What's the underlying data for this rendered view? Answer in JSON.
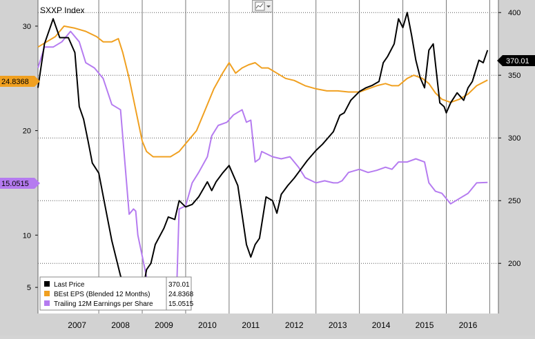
{
  "chart_data": {
    "type": "line",
    "title": "SXXP Index",
    "toolbar_icon": "chart-type-icon",
    "x_categories": [
      "2007",
      "2008",
      "2009",
      "2010",
      "2011",
      "2012",
      "2013",
      "2014",
      "2015",
      "2016"
    ],
    "xlim": [
      2006.6,
      2017.2
    ],
    "left_axis": {
      "ticks": [
        5,
        10,
        20,
        30
      ],
      "ylim": [
        2.5,
        32.5
      ]
    },
    "right_axis": {
      "ticks": [
        200,
        250,
        300,
        350,
        400
      ],
      "ylim": [
        160,
        410
      ]
    },
    "badges": {
      "last_price": "370.01",
      "best_eps": "24.8368",
      "trailing": "15.0515"
    },
    "legend": {
      "placement": "bottom-left",
      "items": [
        {
          "name": "Last Price",
          "value": "370.01",
          "color": "#000000"
        },
        {
          "name": "BEst EPS (Blended 12 Months)",
          "value": "24.8368",
          "color": "#f0a020"
        },
        {
          "name": "Trailing 12M Earnings per Share",
          "value": "15.0515",
          "color": "#b57bf0"
        }
      ]
    },
    "series": [
      {
        "name": "Last Price",
        "axis": "right",
        "color": "#000000",
        "x": [
          2006.6,
          2006.75,
          2006.95,
          2007.1,
          2007.3,
          2007.45,
          2007.55,
          2007.65,
          2007.75,
          2007.85,
          2008.0,
          2008.15,
          2008.3,
          2008.5,
          2008.65,
          2008.8,
          2008.95,
          2009.1,
          2009.2,
          2009.3,
          2009.5,
          2009.6,
          2009.75,
          2009.85,
          2010.0,
          2010.15,
          2010.3,
          2010.5,
          2010.6,
          2010.7,
          2010.85,
          2011.0,
          2011.1,
          2011.2,
          2011.4,
          2011.5,
          2011.6,
          2011.7,
          2011.85,
          2012.0,
          2012.1,
          2012.2,
          2012.35,
          2012.5,
          2012.65,
          2012.8,
          2013.0,
          2013.15,
          2013.4,
          2013.55,
          2013.65,
          2013.8,
          2014.0,
          2014.15,
          2014.3,
          2014.45,
          2014.55,
          2014.65,
          2014.8,
          2014.9,
          2015.0,
          2015.1,
          2015.2,
          2015.3,
          2015.4,
          2015.5,
          2015.6,
          2015.7,
          2015.85,
          2015.95,
          2016.0,
          2016.1,
          2016.25,
          2016.4,
          2016.5,
          2016.6,
          2016.75,
          2016.85,
          2016.95
        ],
        "y": [
          340,
          375,
          395,
          380,
          380,
          368,
          325,
          315,
          298,
          280,
          272,
          245,
          218,
          190,
          180,
          170,
          166,
          195,
          200,
          215,
          228,
          237,
          235,
          250,
          245,
          247,
          253,
          265,
          258,
          265,
          272,
          278,
          270,
          262,
          215,
          205,
          215,
          220,
          253,
          250,
          240,
          255,
          262,
          268,
          275,
          282,
          290,
          295,
          305,
          318,
          320,
          330,
          337,
          340,
          342,
          345,
          360,
          365,
          375,
          395,
          388,
          400,
          382,
          362,
          348,
          340,
          370,
          375,
          328,
          325,
          320,
          328,
          336,
          330,
          340,
          345,
          362,
          360,
          370
        ]
      },
      {
        "name": "BEst EPS (Blended 12 Months)",
        "axis": "left",
        "color": "#f0a020",
        "x": [
          2006.6,
          2006.8,
          2007.0,
          2007.2,
          2007.45,
          2007.7,
          2007.95,
          2008.1,
          2008.3,
          2008.45,
          2008.55,
          2008.7,
          2008.85,
          2009.0,
          2009.1,
          2009.25,
          2009.45,
          2009.65,
          2009.85,
          2010.05,
          2010.25,
          2010.45,
          2010.65,
          2010.85,
          2011.0,
          2011.15,
          2011.3,
          2011.45,
          2011.6,
          2011.75,
          2011.9,
          2012.1,
          2012.3,
          2012.5,
          2012.75,
          2013.0,
          2013.25,
          2013.5,
          2013.75,
          2014.0,
          2014.2,
          2014.4,
          2014.6,
          2014.75,
          2014.9,
          2015.1,
          2015.25,
          2015.45,
          2015.6,
          2015.75,
          2015.9,
          2016.1,
          2016.3,
          2016.5,
          2016.7,
          2016.95
        ],
        "y": [
          28.0,
          28.5,
          29.0,
          30.0,
          29.8,
          29.5,
          29.0,
          28.5,
          28.5,
          28.8,
          27.5,
          25.0,
          22.0,
          19.0,
          18.0,
          17.5,
          17.5,
          17.5,
          18.0,
          19.0,
          20.0,
          22.0,
          24.0,
          25.5,
          26.5,
          25.5,
          26.0,
          26.3,
          26.5,
          26.0,
          26.0,
          25.5,
          25.0,
          24.8,
          24.3,
          24.0,
          23.8,
          23.8,
          23.7,
          23.7,
          24.0,
          24.3,
          24.5,
          24.3,
          24.3,
          25.0,
          25.3,
          25.0,
          24.5,
          23.6,
          23.0,
          22.7,
          23.0,
          23.5,
          24.3,
          24.84
        ]
      },
      {
        "name": "Trailing 12M Earnings per Share",
        "axis": "left",
        "color": "#b57bf0",
        "x": [
          2006.6,
          2006.75,
          2006.95,
          2007.15,
          2007.35,
          2007.55,
          2007.7,
          2007.9,
          2008.1,
          2008.3,
          2008.5,
          2008.7,
          2008.8,
          2008.85,
          2008.9,
          2009.0,
          2009.1,
          2009.2,
          2009.25,
          2009.4,
          2009.6,
          2009.7,
          2009.8,
          2009.85,
          2010.0,
          2010.15,
          2010.3,
          2010.5,
          2010.6,
          2010.75,
          2010.95,
          2011.1,
          2011.3,
          2011.4,
          2011.5,
          2011.6,
          2011.7,
          2011.75,
          2012.0,
          2012.2,
          2012.4,
          2012.5,
          2012.6,
          2012.75,
          2013.0,
          2013.2,
          2013.4,
          2013.5,
          2013.6,
          2013.75,
          2014.0,
          2014.2,
          2014.4,
          2014.6,
          2014.75,
          2014.9,
          2015.1,
          2015.3,
          2015.5,
          2015.6,
          2015.75,
          2015.9,
          2016.1,
          2016.3,
          2016.5,
          2016.7,
          2016.95
        ],
        "y": [
          26.0,
          28.0,
          28.0,
          28.5,
          29.5,
          28.5,
          26.5,
          26.0,
          25.0,
          22.5,
          22.0,
          12.0,
          12.5,
          12.3,
          10.0,
          8.0,
          6.0,
          5.5,
          5.4,
          5.3,
          5.5,
          5.6,
          5.8,
          12.5,
          12.8,
          15.0,
          16.0,
          17.5,
          19.5,
          20.5,
          20.8,
          21.5,
          22.0,
          20.8,
          21.0,
          17.0,
          17.3,
          18.0,
          17.5,
          17.3,
          17.5,
          17.0,
          16.5,
          15.5,
          15.0,
          15.2,
          15.0,
          15.0,
          15.2,
          16.0,
          16.3,
          16.0,
          16.2,
          16.5,
          16.3,
          17.0,
          17.0,
          17.3,
          17.0,
          15.0,
          14.2,
          14.0,
          13.0,
          13.5,
          14.0,
          15.0,
          15.05
        ]
      }
    ]
  }
}
